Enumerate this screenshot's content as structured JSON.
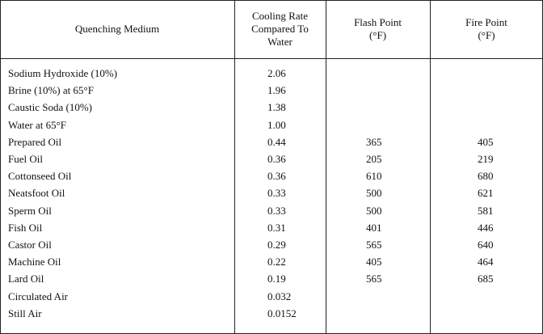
{
  "table": {
    "header": [
      [
        "Quenching Medium"
      ],
      [
        "Cooling Rate",
        "Compared To",
        "Water"
      ],
      [
        "Flash Point",
        "(°F)"
      ],
      [
        "Fire Point",
        "(°F)"
      ]
    ],
    "rows": [
      [
        "Sodium Hydroxide (10%)",
        "2.06",
        null,
        null
      ],
      [
        "Brine (10%) at 65°F",
        "1.96",
        null,
        null
      ],
      [
        "Caustic Soda (10%)",
        "1.38",
        null,
        null
      ],
      [
        "Water at 65°F",
        "1.00",
        null,
        null
      ],
      [
        "Prepared Oil",
        "0.44",
        "365",
        "405"
      ],
      [
        "Fuel Oil",
        "0.36",
        "205",
        "219"
      ],
      [
        "Cottonseed Oil",
        "0.36",
        "610",
        "680"
      ],
      [
        "Neatsfoot Oil",
        "0.33",
        "500",
        "621"
      ],
      [
        "Sperm Oil",
        "0.33",
        "500",
        "581"
      ],
      [
        "Fish Oil",
        "0.31",
        "401",
        "446"
      ],
      [
        "Castor Oil",
        "0.29",
        "565",
        "640"
      ],
      [
        "Machine Oil",
        "0.22",
        "405",
        "464"
      ],
      [
        "Lard Oil",
        "0.19",
        "565",
        "685"
      ],
      [
        "Circulated Air",
        "0.032",
        null,
        null
      ],
      [
        "Still Air",
        "0.0152",
        null,
        null
      ]
    ]
  }
}
